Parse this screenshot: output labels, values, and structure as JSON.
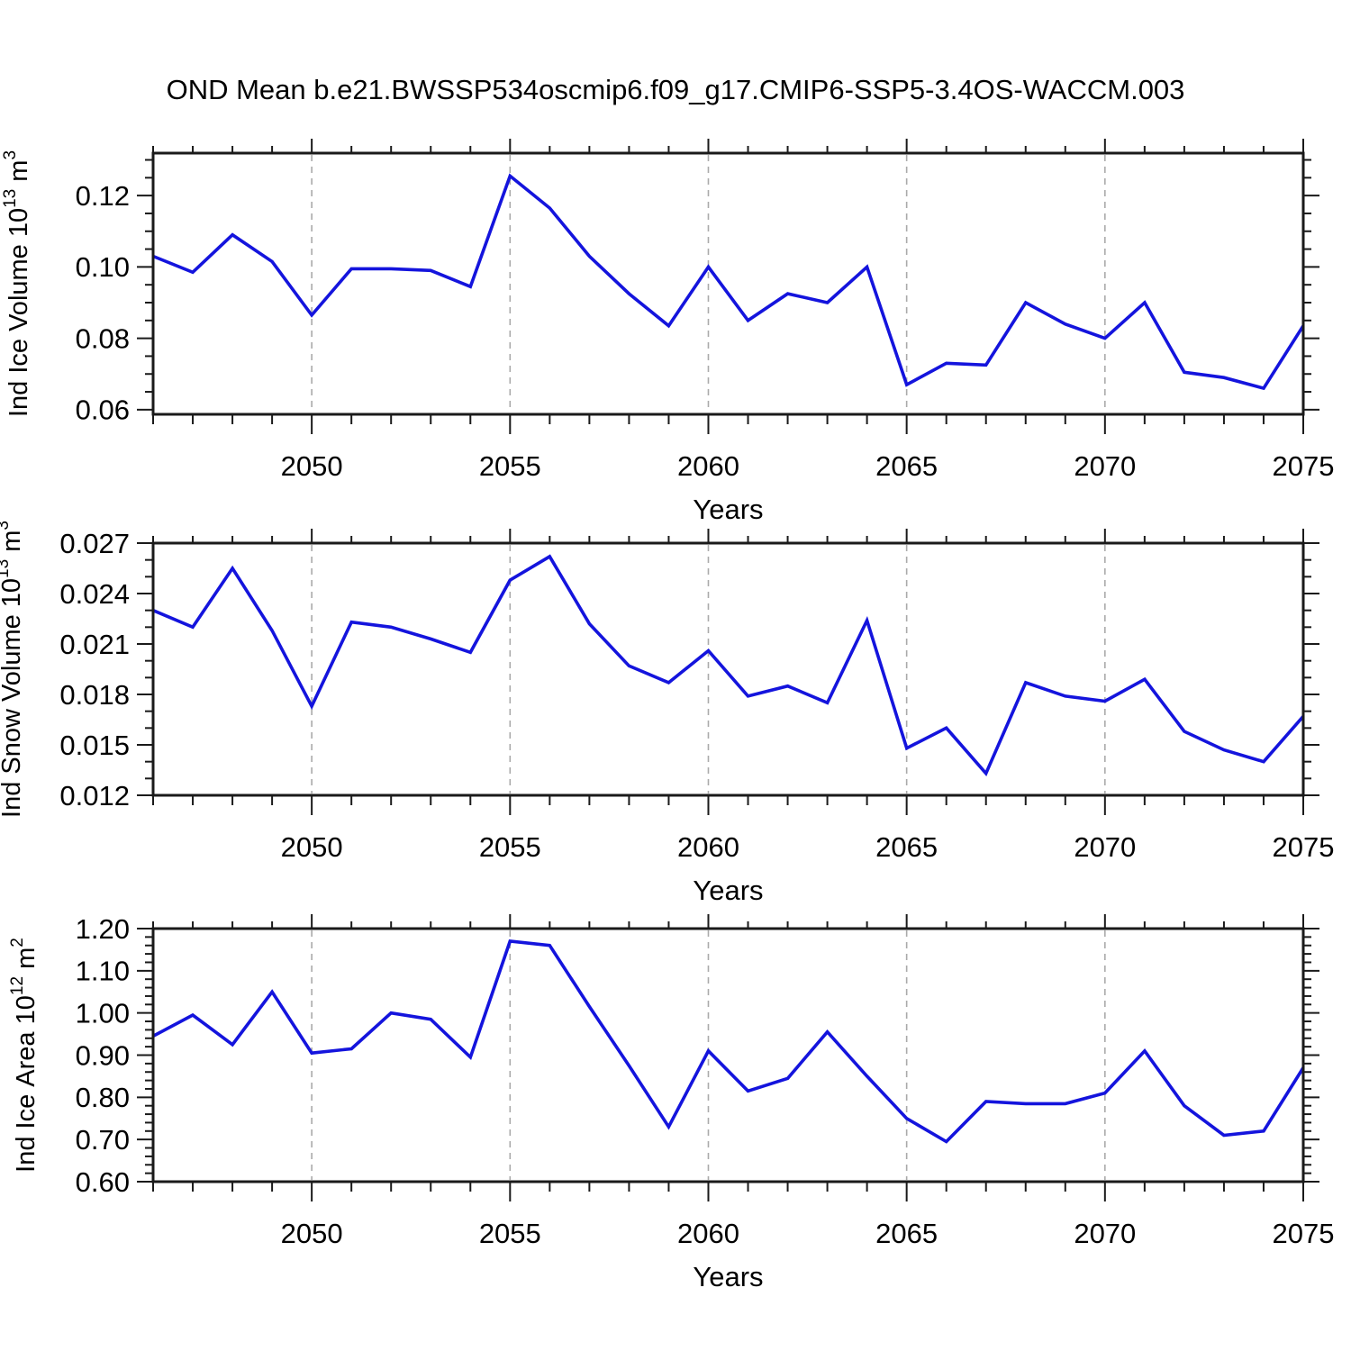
{
  "title": "OND Mean b.e21.BWSSP534oscmip6.f09_g17.CMIP6-SSP5-3.4OS-WACCM.003",
  "line_color": "#1414dd",
  "grid_color": "#aaaaaa",
  "axis_color": "#1a1a1a",
  "chart_data": [
    {
      "id": "ice-volume",
      "type": "line",
      "ylabel_parts": [
        "Ind Ice Volume 10",
        "13",
        " m",
        "3"
      ],
      "xlabel": "Years",
      "x": [
        2046,
        2047,
        2048,
        2049,
        2050,
        2051,
        2052,
        2053,
        2054,
        2055,
        2056,
        2057,
        2058,
        2059,
        2060,
        2061,
        2062,
        2063,
        2064,
        2065,
        2066,
        2067,
        2068,
        2069,
        2070,
        2071,
        2072,
        2073,
        2074,
        2075
      ],
      "values": [
        0.103,
        0.0985,
        0.109,
        0.1015,
        0.0865,
        0.0995,
        0.0995,
        0.099,
        0.0945,
        0.1255,
        0.1165,
        0.103,
        0.0925,
        0.0835,
        0.1,
        0.085,
        0.0925,
        0.09,
        0.1,
        0.067,
        0.073,
        0.0725,
        0.09,
        0.084,
        0.08,
        0.09,
        0.0705,
        0.069,
        0.066,
        0.0835
      ],
      "xlim": [
        2046,
        2075
      ],
      "ylim": [
        0.0587,
        0.1319
      ],
      "ytick_values": [
        0.06,
        0.08,
        0.1,
        0.12
      ],
      "ytick_labels": [
        "0.06",
        "0.08",
        "0.10",
        "0.12"
      ],
      "ytick_minor_step": 0.005,
      "xtick_values": [
        2050,
        2055,
        2060,
        2065,
        2070,
        2075
      ],
      "xtick_labels": [
        "2050",
        "2055",
        "2060",
        "2065",
        "2070",
        "2075"
      ],
      "grid_years": [
        2050,
        2055,
        2060,
        2065,
        2070
      ],
      "grid": "vertical-dashed",
      "legend": "none"
    },
    {
      "id": "snow-volume",
      "type": "line",
      "ylabel_parts": [
        "Ind Snow Volume 10",
        "13",
        " m",
        "3"
      ],
      "xlabel": "Years",
      "x": [
        2046,
        2047,
        2048,
        2049,
        2050,
        2051,
        2052,
        2053,
        2054,
        2055,
        2056,
        2057,
        2058,
        2059,
        2060,
        2061,
        2062,
        2063,
        2064,
        2065,
        2066,
        2067,
        2068,
        2069,
        2070,
        2071,
        2072,
        2073,
        2074,
        2075
      ],
      "values": [
        0.023,
        0.022,
        0.0255,
        0.0218,
        0.0173,
        0.0223,
        0.022,
        0.0213,
        0.0205,
        0.0248,
        0.0262,
        0.0222,
        0.0197,
        0.0187,
        0.0206,
        0.0179,
        0.0185,
        0.0175,
        0.0224,
        0.0148,
        0.016,
        0.0133,
        0.0187,
        0.0179,
        0.0176,
        0.0189,
        0.0158,
        0.0147,
        0.014,
        0.0167
      ],
      "xlim": [
        2046,
        2075
      ],
      "ylim": [
        0.012,
        0.027
      ],
      "ytick_values": [
        0.012,
        0.015,
        0.018,
        0.021,
        0.024,
        0.027
      ],
      "ytick_labels": [
        "0.012",
        "0.015",
        "0.018",
        "0.021",
        "0.024",
        "0.027"
      ],
      "ytick_minor_step": 0.001,
      "xtick_values": [
        2050,
        2055,
        2060,
        2065,
        2070,
        2075
      ],
      "xtick_labels": [
        "2050",
        "2055",
        "2060",
        "2065",
        "2070",
        "2075"
      ],
      "grid_years": [
        2050,
        2055,
        2060,
        2065,
        2070
      ],
      "grid": "vertical-dashed",
      "legend": "none"
    },
    {
      "id": "ice-area",
      "type": "line",
      "ylabel_parts": [
        "Ind Ice Area 10",
        "12",
        " m",
        "2"
      ],
      "xlabel": "Years",
      "x": [
        2046,
        2047,
        2048,
        2049,
        2050,
        2051,
        2052,
        2053,
        2054,
        2055,
        2056,
        2057,
        2058,
        2059,
        2060,
        2061,
        2062,
        2063,
        2064,
        2065,
        2066,
        2067,
        2068,
        2069,
        2070,
        2071,
        2072,
        2073,
        2074,
        2075
      ],
      "values": [
        0.945,
        0.995,
        0.925,
        1.05,
        0.905,
        0.915,
        1.0,
        0.985,
        0.895,
        1.17,
        1.16,
        1.015,
        0.875,
        0.73,
        0.91,
        0.815,
        0.845,
        0.955,
        0.85,
        0.75,
        0.695,
        0.79,
        0.785,
        0.785,
        0.81,
        0.91,
        0.78,
        0.71,
        0.72,
        0.87
      ],
      "xlim": [
        2046,
        2075
      ],
      "ylim": [
        0.6,
        1.2
      ],
      "ytick_values": [
        0.6,
        0.7,
        0.8,
        0.9,
        1.0,
        1.1,
        1.2
      ],
      "ytick_labels": [
        "0.60",
        "0.70",
        "0.80",
        "0.90",
        "1.00",
        "1.10",
        "1.20"
      ],
      "ytick_minor_step": 0.02,
      "xtick_values": [
        2050,
        2055,
        2060,
        2065,
        2070,
        2075
      ],
      "xtick_labels": [
        "2050",
        "2055",
        "2060",
        "2065",
        "2070",
        "2075"
      ],
      "grid_years": [
        2050,
        2055,
        2060,
        2065,
        2070
      ],
      "grid": "vertical-dashed",
      "legend": "none"
    }
  ]
}
